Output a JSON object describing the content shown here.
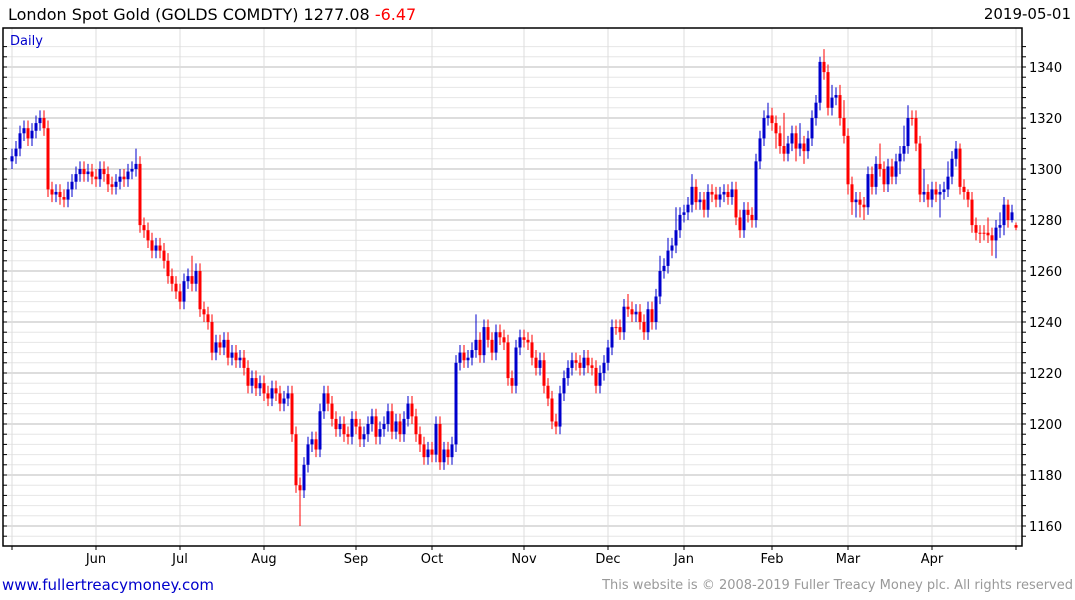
{
  "header": {
    "title": "London Spot Gold (GOLDS COMDTY) 1277.08",
    "change": "-6.47",
    "date": "2019-05-01"
  },
  "footer": {
    "link": "www.fullertreacymoney.com",
    "copyright": "This website is © 2008-2019 Fuller Treacy Money plc. All rights reserved"
  },
  "colors": {
    "up": "#0000cc",
    "down": "#ff0000",
    "grid_major": "#bbbbbb",
    "grid_minor": "#e6e6e6",
    "grid_vertical": "#dddddd"
  },
  "chart_data": {
    "type": "candlestick",
    "title": "London Spot Gold (GOLDS COMDTY)",
    "period_label": "Daily",
    "ylim": [
      1152,
      1350
    ],
    "yticks": [
      1160,
      1180,
      1200,
      1220,
      1240,
      1260,
      1280,
      1300,
      1320,
      1340
    ],
    "grid": true,
    "months": [
      {
        "label": "",
        "index": 0
      },
      {
        "label": "Jun",
        "index": 21
      },
      {
        "label": "Jul",
        "index": 42
      },
      {
        "label": "Aug",
        "index": 63
      },
      {
        "label": "Sep",
        "index": 86
      },
      {
        "label": "Oct",
        "index": 105
      },
      {
        "label": "Nov",
        "index": 128
      },
      {
        "label": "Dec",
        "index": 149
      },
      {
        "label": "Jan",
        "index": 168
      },
      {
        "label": "Feb",
        "index": 190
      },
      {
        "label": "Mar",
        "index": 209
      },
      {
        "label": "Apr",
        "index": 230
      },
      {
        "label": "",
        "index": 251
      }
    ],
    "ohlc": [
      [
        1303,
        1308,
        1300,
        1305
      ],
      [
        1305,
        1311,
        1302,
        1308
      ],
      [
        1308,
        1317,
        1305,
        1314
      ],
      [
        1314,
        1319,
        1311,
        1316
      ],
      [
        1316,
        1319,
        1309,
        1312
      ],
      [
        1312,
        1318,
        1309,
        1315
      ],
      [
        1315,
        1321,
        1312,
        1318
      ],
      [
        1318,
        1323,
        1315,
        1320
      ],
      [
        1320,
        1323,
        1313,
        1316
      ],
      [
        1316,
        1319,
        1289,
        1292
      ],
      [
        1292,
        1295,
        1287,
        1290
      ],
      [
        1290,
        1294,
        1287,
        1291
      ],
      [
        1291,
        1294,
        1286,
        1289
      ],
      [
        1289,
        1292,
        1285,
        1288
      ],
      [
        1288,
        1295,
        1285,
        1292
      ],
      [
        1292,
        1298,
        1289,
        1295
      ],
      [
        1295,
        1301,
        1292,
        1298
      ],
      [
        1298,
        1303,
        1295,
        1300
      ],
      [
        1300,
        1303,
        1295,
        1298
      ],
      [
        1298,
        1302,
        1295,
        1299
      ],
      [
        1299,
        1302,
        1294,
        1297
      ],
      [
        1297,
        1300,
        1293,
        1296
      ],
      [
        1296,
        1303,
        1293,
        1300
      ],
      [
        1300,
        1303,
        1295,
        1298
      ],
      [
        1298,
        1301,
        1291,
        1294
      ],
      [
        1294,
        1297,
        1290,
        1293
      ],
      [
        1293,
        1298,
        1290,
        1295
      ],
      [
        1295,
        1300,
        1292,
        1297
      ],
      [
        1297,
        1300,
        1293,
        1296
      ],
      [
        1296,
        1302,
        1293,
        1299
      ],
      [
        1299,
        1303,
        1296,
        1300
      ],
      [
        1300,
        1308,
        1297,
        1302
      ],
      [
        1302,
        1305,
        1275,
        1278
      ],
      [
        1278,
        1281,
        1273,
        1276
      ],
      [
        1276,
        1279,
        1269,
        1272
      ],
      [
        1272,
        1275,
        1265,
        1268
      ],
      [
        1268,
        1273,
        1265,
        1270
      ],
      [
        1270,
        1273,
        1265,
        1268
      ],
      [
        1268,
        1271,
        1261,
        1264
      ],
      [
        1264,
        1267,
        1255,
        1258
      ],
      [
        1258,
        1261,
        1252,
        1255
      ],
      [
        1255,
        1258,
        1249,
        1252
      ],
      [
        1252,
        1255,
        1245,
        1248
      ],
      [
        1248,
        1259,
        1245,
        1256
      ],
      [
        1256,
        1261,
        1253,
        1258
      ],
      [
        1258,
        1266,
        1252,
        1255
      ],
      [
        1255,
        1263,
        1252,
        1260
      ],
      [
        1260,
        1263,
        1242,
        1245
      ],
      [
        1245,
        1248,
        1240,
        1243
      ],
      [
        1243,
        1246,
        1237,
        1240
      ],
      [
        1240,
        1243,
        1225,
        1228
      ],
      [
        1228,
        1235,
        1225,
        1232
      ],
      [
        1232,
        1235,
        1227,
        1230
      ],
      [
        1230,
        1236,
        1227,
        1233
      ],
      [
        1233,
        1236,
        1223,
        1226
      ],
      [
        1226,
        1231,
        1223,
        1228
      ],
      [
        1228,
        1231,
        1222,
        1225
      ],
      [
        1225,
        1229,
        1222,
        1226
      ],
      [
        1226,
        1229,
        1219,
        1222
      ],
      [
        1222,
        1225,
        1212,
        1215
      ],
      [
        1215,
        1221,
        1212,
        1218
      ],
      [
        1218,
        1221,
        1211,
        1214
      ],
      [
        1214,
        1219,
        1211,
        1216
      ],
      [
        1216,
        1219,
        1209,
        1212
      ],
      [
        1212,
        1215,
        1207,
        1210
      ],
      [
        1210,
        1217,
        1207,
        1214
      ],
      [
        1214,
        1217,
        1209,
        1212
      ],
      [
        1212,
        1215,
        1205,
        1208
      ],
      [
        1208,
        1213,
        1205,
        1210
      ],
      [
        1210,
        1215,
        1207,
        1212
      ],
      [
        1212,
        1215,
        1193,
        1196
      ],
      [
        1196,
        1199,
        1173,
        1176
      ],
      [
        1176,
        1179,
        1160,
        1174
      ],
      [
        1174,
        1187,
        1171,
        1184
      ],
      [
        1184,
        1195,
        1181,
        1192
      ],
      [
        1192,
        1197,
        1189,
        1194
      ],
      [
        1194,
        1197,
        1187,
        1190
      ],
      [
        1190,
        1208,
        1187,
        1205
      ],
      [
        1205,
        1215,
        1202,
        1212
      ],
      [
        1212,
        1215,
        1205,
        1208
      ],
      [
        1208,
        1211,
        1199,
        1202
      ],
      [
        1202,
        1205,
        1195,
        1198
      ],
      [
        1198,
        1203,
        1195,
        1200
      ],
      [
        1200,
        1203,
        1193,
        1196
      ],
      [
        1196,
        1199,
        1192,
        1195
      ],
      [
        1195,
        1205,
        1192,
        1202
      ],
      [
        1202,
        1205,
        1196,
        1199
      ],
      [
        1199,
        1202,
        1191,
        1194
      ],
      [
        1194,
        1199,
        1191,
        1196
      ],
      [
        1196,
        1203,
        1193,
        1200
      ],
      [
        1200,
        1206,
        1197,
        1203
      ],
      [
        1203,
        1206,
        1192,
        1195
      ],
      [
        1195,
        1201,
        1192,
        1198
      ],
      [
        1198,
        1203,
        1195,
        1200
      ],
      [
        1200,
        1208,
        1197,
        1205
      ],
      [
        1205,
        1208,
        1194,
        1197
      ],
      [
        1197,
        1204,
        1194,
        1201
      ],
      [
        1201,
        1204,
        1193,
        1196
      ],
      [
        1196,
        1205,
        1193,
        1202
      ],
      [
        1202,
        1211,
        1199,
        1208
      ],
      [
        1208,
        1211,
        1200,
        1203
      ],
      [
        1203,
        1206,
        1193,
        1196
      ],
      [
        1196,
        1199,
        1189,
        1192
      ],
      [
        1192,
        1195,
        1184,
        1187
      ],
      [
        1187,
        1193,
        1184,
        1190
      ],
      [
        1190,
        1193,
        1185,
        1188
      ],
      [
        1188,
        1203,
        1185,
        1200
      ],
      [
        1200,
        1203,
        1182,
        1185
      ],
      [
        1185,
        1193,
        1182,
        1190
      ],
      [
        1190,
        1193,
        1184,
        1187
      ],
      [
        1187,
        1195,
        1184,
        1192
      ],
      [
        1192,
        1227,
        1189,
        1224
      ],
      [
        1224,
        1231,
        1221,
        1228
      ],
      [
        1228,
        1231,
        1222,
        1225
      ],
      [
        1225,
        1229,
        1222,
        1226
      ],
      [
        1226,
        1232,
        1223,
        1229
      ],
      [
        1229,
        1243,
        1226,
        1233
      ],
      [
        1233,
        1236,
        1224,
        1227
      ],
      [
        1227,
        1241,
        1224,
        1238
      ],
      [
        1238,
        1241,
        1230,
        1233
      ],
      [
        1233,
        1236,
        1225,
        1228
      ],
      [
        1228,
        1239,
        1225,
        1236
      ],
      [
        1236,
        1239,
        1231,
        1234
      ],
      [
        1234,
        1237,
        1229,
        1232
      ],
      [
        1232,
        1235,
        1215,
        1218
      ],
      [
        1218,
        1221,
        1212,
        1215
      ],
      [
        1215,
        1233,
        1212,
        1230
      ],
      [
        1230,
        1237,
        1227,
        1234
      ],
      [
        1234,
        1237,
        1230,
        1233
      ],
      [
        1233,
        1236,
        1229,
        1232
      ],
      [
        1232,
        1235,
        1223,
        1226
      ],
      [
        1226,
        1229,
        1219,
        1222
      ],
      [
        1222,
        1228,
        1219,
        1225
      ],
      [
        1225,
        1228,
        1212,
        1215
      ],
      [
        1215,
        1218,
        1207,
        1210
      ],
      [
        1210,
        1213,
        1198,
        1201
      ],
      [
        1201,
        1204,
        1196,
        1199
      ],
      [
        1199,
        1215,
        1196,
        1212
      ],
      [
        1212,
        1221,
        1209,
        1218
      ],
      [
        1218,
        1225,
        1215,
        1222
      ],
      [
        1222,
        1228,
        1219,
        1225
      ],
      [
        1225,
        1228,
        1221,
        1224
      ],
      [
        1224,
        1227,
        1219,
        1222
      ],
      [
        1222,
        1229,
        1219,
        1226
      ],
      [
        1226,
        1229,
        1220,
        1223
      ],
      [
        1223,
        1226,
        1219,
        1222
      ],
      [
        1222,
        1225,
        1212,
        1215
      ],
      [
        1215,
        1223,
        1212,
        1220
      ],
      [
        1220,
        1227,
        1217,
        1224
      ],
      [
        1224,
        1233,
        1221,
        1230
      ],
      [
        1230,
        1241,
        1227,
        1238
      ],
      [
        1238,
        1241,
        1235,
        1238
      ],
      [
        1238,
        1241,
        1233,
        1236
      ],
      [
        1236,
        1249,
        1233,
        1246
      ],
      [
        1246,
        1251,
        1242,
        1245
      ],
      [
        1245,
        1248,
        1240,
        1243
      ],
      [
        1243,
        1247,
        1240,
        1244
      ],
      [
        1244,
        1247,
        1237,
        1240
      ],
      [
        1240,
        1243,
        1233,
        1236
      ],
      [
        1236,
        1248,
        1233,
        1245
      ],
      [
        1245,
        1248,
        1237,
        1240
      ],
      [
        1240,
        1253,
        1237,
        1250
      ],
      [
        1250,
        1266,
        1247,
        1260
      ],
      [
        1260,
        1265,
        1257,
        1262
      ],
      [
        1262,
        1273,
        1259,
        1268
      ],
      [
        1268,
        1273,
        1265,
        1270
      ],
      [
        1270,
        1285,
        1267,
        1276
      ],
      [
        1276,
        1285,
        1273,
        1282
      ],
      [
        1282,
        1286,
        1279,
        1283
      ],
      [
        1283,
        1289,
        1280,
        1286
      ],
      [
        1286,
        1298,
        1283,
        1293
      ],
      [
        1293,
        1296,
        1284,
        1287
      ],
      [
        1287,
        1291,
        1284,
        1288
      ],
      [
        1288,
        1291,
        1281,
        1284
      ],
      [
        1284,
        1294,
        1281,
        1291
      ],
      [
        1291,
        1294,
        1287,
        1290
      ],
      [
        1290,
        1293,
        1285,
        1288
      ],
      [
        1288,
        1293,
        1285,
        1290
      ],
      [
        1290,
        1294,
        1287,
        1291
      ],
      [
        1291,
        1294,
        1286,
        1289
      ],
      [
        1289,
        1295,
        1286,
        1292
      ],
      [
        1292,
        1295,
        1278,
        1281
      ],
      [
        1281,
        1284,
        1273,
        1276
      ],
      [
        1276,
        1287,
        1273,
        1284
      ],
      [
        1284,
        1287,
        1279,
        1282
      ],
      [
        1282,
        1285,
        1277,
        1280
      ],
      [
        1280,
        1306,
        1277,
        1303
      ],
      [
        1303,
        1315,
        1300,
        1312
      ],
      [
        1312,
        1323,
        1309,
        1320
      ],
      [
        1320,
        1326,
        1317,
        1321
      ],
      [
        1321,
        1324,
        1315,
        1318
      ],
      [
        1318,
        1321,
        1308,
        1314
      ],
      [
        1314,
        1317,
        1306,
        1309
      ],
      [
        1309,
        1322,
        1303,
        1306
      ],
      [
        1306,
        1313,
        1303,
        1310
      ],
      [
        1310,
        1317,
        1307,
        1314
      ],
      [
        1314,
        1317,
        1303,
        1308
      ],
      [
        1308,
        1318,
        1305,
        1310
      ],
      [
        1310,
        1313,
        1302,
        1307
      ],
      [
        1307,
        1315,
        1304,
        1312
      ],
      [
        1312,
        1323,
        1309,
        1320
      ],
      [
        1320,
        1329,
        1317,
        1326
      ],
      [
        1326,
        1344,
        1323,
        1342
      ],
      [
        1342,
        1347,
        1335,
        1338
      ],
      [
        1338,
        1341,
        1321,
        1324
      ],
      [
        1324,
        1333,
        1321,
        1328
      ],
      [
        1328,
        1332,
        1325,
        1329
      ],
      [
        1329,
        1333,
        1317,
        1320
      ],
      [
        1320,
        1327,
        1310,
        1313
      ],
      [
        1313,
        1316,
        1290,
        1294
      ],
      [
        1294,
        1297,
        1282,
        1287
      ],
      [
        1287,
        1291,
        1281,
        1288
      ],
      [
        1288,
        1291,
        1281,
        1286
      ],
      [
        1286,
        1289,
        1280,
        1285
      ],
      [
        1285,
        1301,
        1282,
        1298
      ],
      [
        1298,
        1301,
        1290,
        1293
      ],
      [
        1293,
        1305,
        1290,
        1302
      ],
      [
        1302,
        1310,
        1297,
        1300
      ],
      [
        1300,
        1303,
        1291,
        1294
      ],
      [
        1294,
        1304,
        1291,
        1301
      ],
      [
        1301,
        1304,
        1294,
        1297
      ],
      [
        1297,
        1306,
        1294,
        1303
      ],
      [
        1303,
        1309,
        1298,
        1306
      ],
      [
        1306,
        1317,
        1303,
        1309
      ],
      [
        1309,
        1325,
        1306,
        1320
      ],
      [
        1320,
        1323,
        1317,
        1320
      ],
      [
        1320,
        1323,
        1307,
        1310
      ],
      [
        1310,
        1313,
        1287,
        1290
      ],
      [
        1290,
        1300,
        1287,
        1291
      ],
      [
        1291,
        1294,
        1285,
        1288
      ],
      [
        1288,
        1295,
        1285,
        1292
      ],
      [
        1292,
        1295,
        1287,
        1290
      ],
      [
        1290,
        1294,
        1281,
        1291
      ],
      [
        1291,
        1295,
        1288,
        1292
      ],
      [
        1292,
        1303,
        1289,
        1297
      ],
      [
        1297,
        1307,
        1294,
        1304
      ],
      [
        1304,
        1311,
        1301,
        1308
      ],
      [
        1308,
        1310,
        1290,
        1293
      ],
      [
        1293,
        1296,
        1288,
        1291
      ],
      [
        1291,
        1292,
        1285,
        1288
      ],
      [
        1288,
        1291,
        1275,
        1278
      ],
      [
        1278,
        1281,
        1272,
        1275
      ],
      [
        1275,
        1278,
        1271,
        1275
      ],
      [
        1275,
        1278,
        1272,
        1275
      ],
      [
        1275,
        1281,
        1271,
        1274
      ],
      [
        1274,
        1277,
        1266,
        1272
      ],
      [
        1272,
        1280,
        1265,
        1277
      ],
      [
        1277,
        1283,
        1273,
        1278
      ],
      [
        1278,
        1289,
        1274,
        1286
      ],
      [
        1286,
        1288,
        1277,
        1280
      ],
      [
        1280,
        1286,
        1279,
        1283
      ],
      [
        1278,
        1279,
        1276,
        1277
      ]
    ]
  }
}
